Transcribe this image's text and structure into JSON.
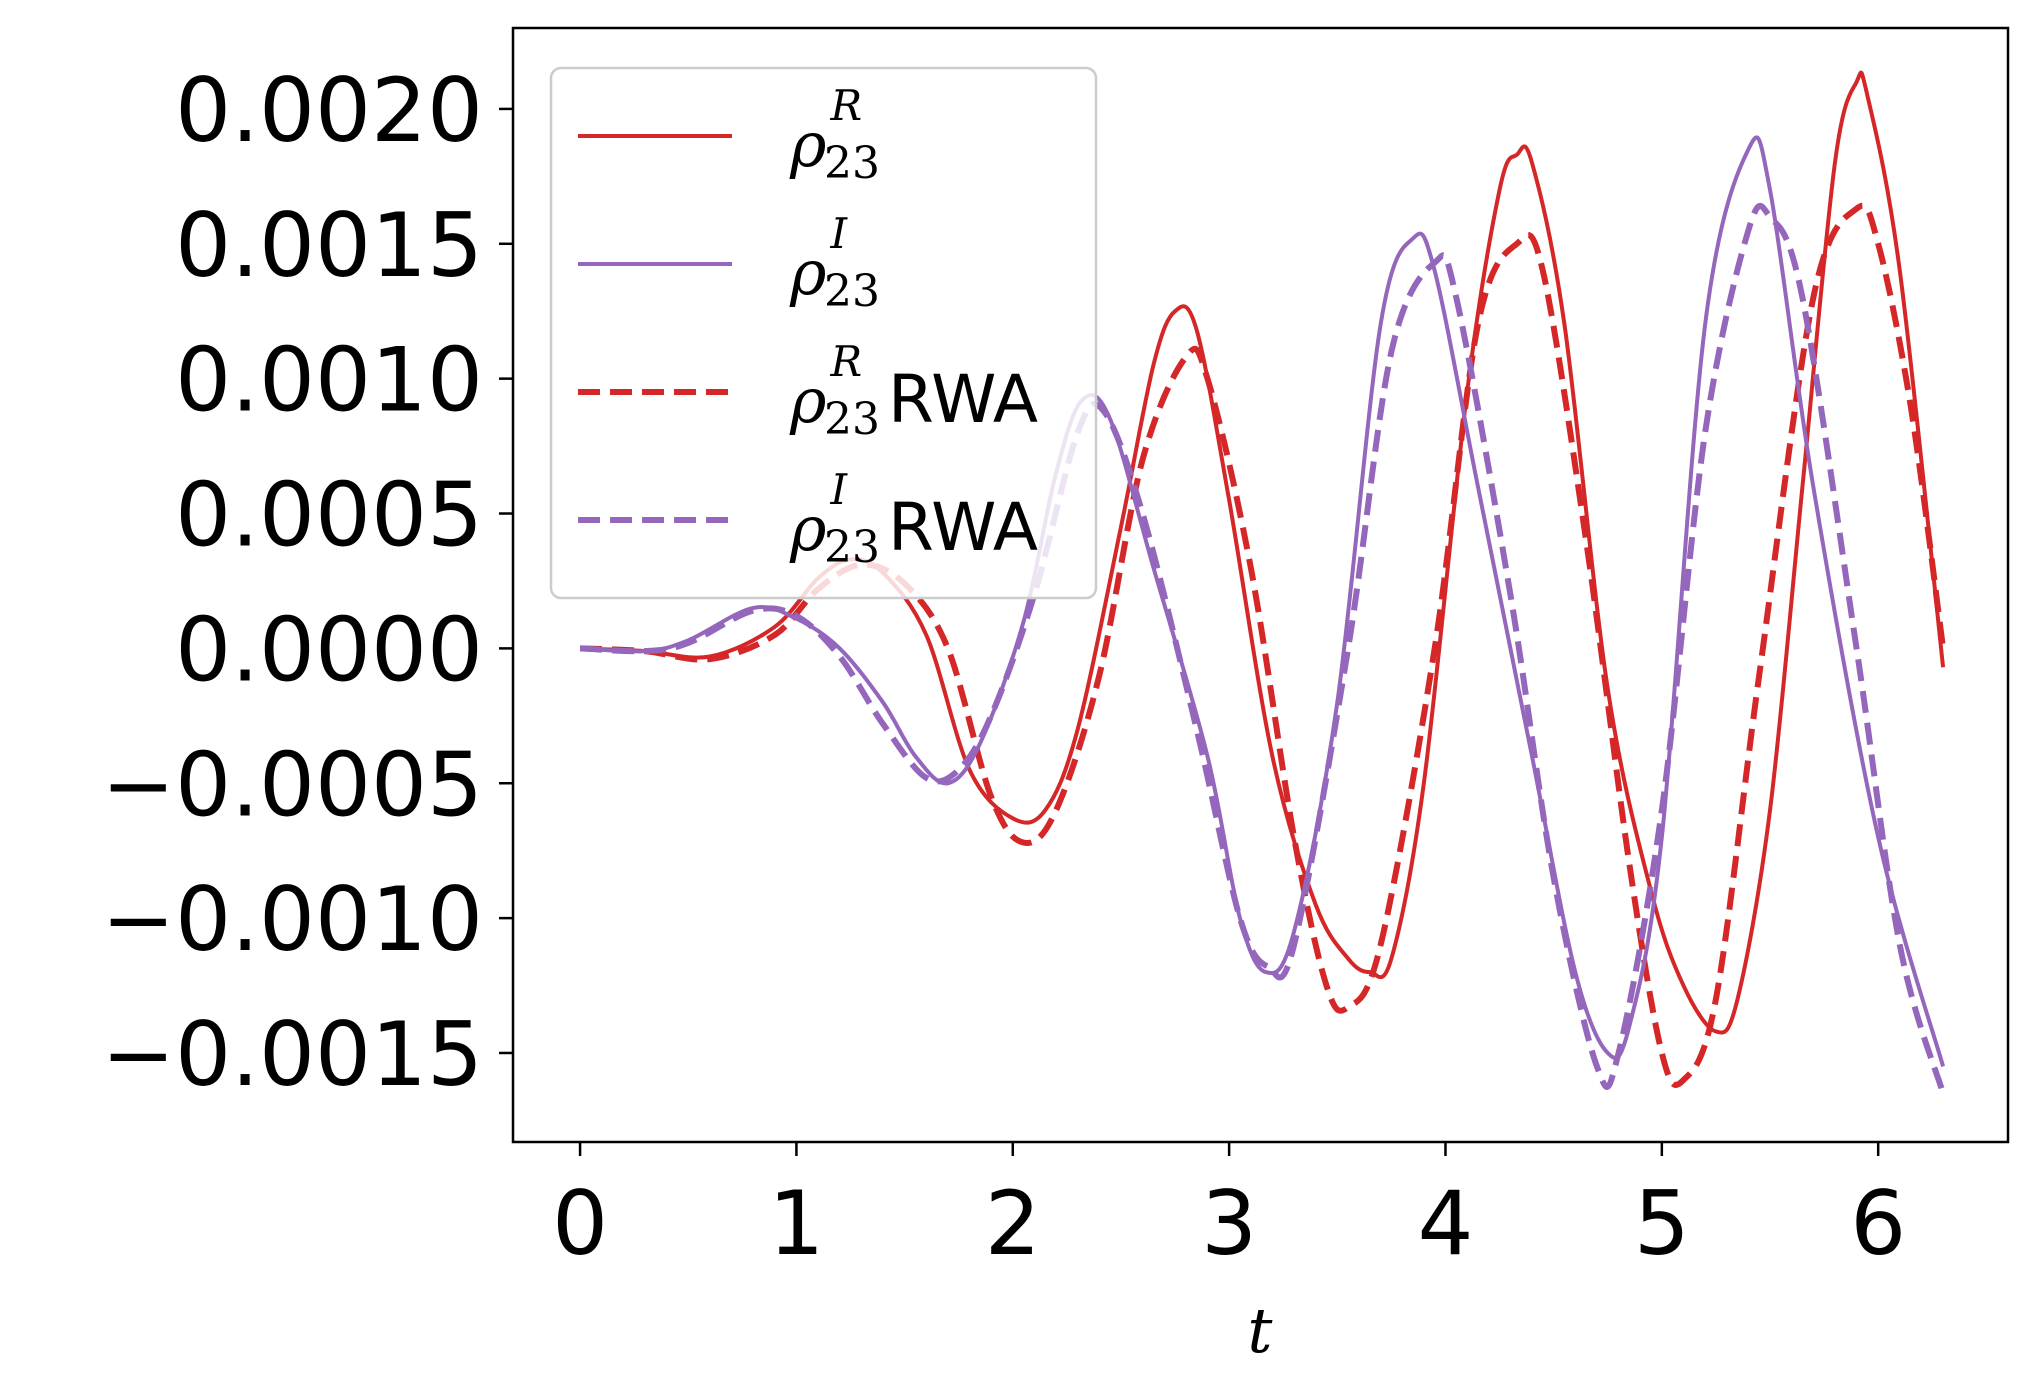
{
  "chart_data": {
    "type": "line",
    "title": "",
    "xlabel": "t",
    "ylabel": "",
    "xlim": [
      -0.31,
      6.6
    ],
    "ylim": [
      -0.00183,
      0.0023
    ],
    "xticks": [
      "0",
      "1",
      "2",
      "3",
      "4",
      "5",
      "6"
    ],
    "yticks": [
      "0.0020",
      "0.0015",
      "0.0010",
      "0.0005",
      "0.0000",
      "−0.0005",
      "−0.0010",
      "−0.0015"
    ],
    "grid": false,
    "legend_position": "upper-left",
    "series": [
      {
        "name": "ρ_23^R",
        "legend": {
          "base": "ρ",
          "sub": "23",
          "sup": "R",
          "suffix": ""
        },
        "color": "#d62728",
        "dash": "solid",
        "points": [
          [
            0,
            0
          ],
          [
            0.3,
            -1e-05
          ],
          [
            0.6,
            -3e-05
          ],
          [
            0.9,
            8e-05
          ],
          [
            1.1,
            0.00026
          ],
          [
            1.25,
            0.00033
          ],
          [
            1.4,
            0.00028
          ],
          [
            1.6,
            5e-05
          ],
          [
            1.8,
            -0.00045
          ],
          [
            2.0,
            -0.00063
          ],
          [
            2.15,
            -0.0006
          ],
          [
            2.3,
            -0.0003
          ],
          [
            2.5,
            0.00045
          ],
          [
            2.65,
            0.00105
          ],
          [
            2.75,
            0.00125
          ],
          [
            2.85,
            0.00118
          ],
          [
            3.0,
            0.00055
          ],
          [
            3.2,
            -0.0004
          ],
          [
            3.4,
            -0.00095
          ],
          [
            3.55,
            -0.00115
          ],
          [
            3.65,
            -0.0012
          ],
          [
            3.75,
            -0.00115
          ],
          [
            3.9,
            -0.0005
          ],
          [
            4.1,
            0.00095
          ],
          [
            4.25,
            0.0017
          ],
          [
            4.33,
            0.00183
          ],
          [
            4.4,
            0.0018
          ],
          [
            4.55,
            0.0012
          ],
          [
            4.75,
            -0.00015
          ],
          [
            4.95,
            -0.0009
          ],
          [
            5.1,
            -0.00125
          ],
          [
            5.25,
            -0.00142
          ],
          [
            5.35,
            -0.0013
          ],
          [
            5.5,
            -0.0006
          ],
          [
            5.65,
            0.0006
          ],
          [
            5.8,
            0.0018
          ],
          [
            5.9,
            0.0021
          ],
          [
            5.95,
            0.00205
          ],
          [
            6.1,
            0.0014
          ],
          [
            6.3,
            -7e-05
          ]
        ]
      },
      {
        "name": "ρ_23^I",
        "legend": {
          "base": "ρ",
          "sub": "23",
          "sup": "I",
          "suffix": ""
        },
        "color": "#9467bd",
        "dash": "solid",
        "points": [
          [
            0,
            0
          ],
          [
            0.3,
            -1e-05
          ],
          [
            0.5,
            3e-05
          ],
          [
            0.8,
            0.00015
          ],
          [
            1.0,
            0.00011
          ],
          [
            1.2,
            0
          ],
          [
            1.4,
            -0.0002
          ],
          [
            1.55,
            -0.0004
          ],
          [
            1.7,
            -0.0005
          ],
          [
            1.85,
            -0.00035
          ],
          [
            2.05,
            0.0001
          ],
          [
            2.2,
            0.00065
          ],
          [
            2.32,
            0.00092
          ],
          [
            2.45,
            0.00085
          ],
          [
            2.65,
            0.0003
          ],
          [
            2.9,
            -0.0004
          ],
          [
            3.05,
            -0.001
          ],
          [
            3.17,
            -0.0012
          ],
          [
            3.3,
            -0.00105
          ],
          [
            3.5,
            -0.0002
          ],
          [
            3.7,
            0.0012
          ],
          [
            3.85,
            0.00152
          ],
          [
            3.95,
            0.0014
          ],
          [
            4.15,
            0.0006
          ],
          [
            4.4,
            -0.0004
          ],
          [
            4.6,
            -0.0012
          ],
          [
            4.75,
            -0.0015
          ],
          [
            4.85,
            -0.0014
          ],
          [
            5.0,
            -0.0007
          ],
          [
            5.2,
            0.0012
          ],
          [
            5.4,
            0.00185
          ],
          [
            5.5,
            0.0017
          ],
          [
            5.7,
            0.0006
          ],
          [
            6.0,
            -0.0007
          ],
          [
            6.3,
            -0.00155
          ]
        ]
      },
      {
        "name": "ρ_23^R RWA",
        "legend": {
          "base": "ρ",
          "sub": "23",
          "sup": "R",
          "suffix": "RWA"
        },
        "color": "#d62728",
        "dash": "dashed",
        "points": [
          [
            0,
            0
          ],
          [
            0.3,
            -1e-05
          ],
          [
            0.6,
            -4e-05
          ],
          [
            0.9,
            5e-05
          ],
          [
            1.1,
            0.00022
          ],
          [
            1.3,
            0.00031
          ],
          [
            1.5,
            0.00024
          ],
          [
            1.7,
            0
          ],
          [
            1.9,
            -0.00055
          ],
          [
            2.05,
            -0.00072
          ],
          [
            2.2,
            -0.0006
          ],
          [
            2.4,
            -0.0001
          ],
          [
            2.6,
            0.0007
          ],
          [
            2.8,
            0.00108
          ],
          [
            2.9,
            0.001
          ],
          [
            3.1,
            0.0003
          ],
          [
            3.3,
            -0.0007
          ],
          [
            3.45,
            -0.00125
          ],
          [
            3.55,
            -0.00133
          ],
          [
            3.7,
            -0.0011
          ],
          [
            3.95,
            0
          ],
          [
            4.15,
            0.0012
          ],
          [
            4.33,
            0.0015
          ],
          [
            4.45,
            0.0014
          ],
          [
            4.65,
            0.0004
          ],
          [
            4.85,
            -0.0008
          ],
          [
            5.0,
            -0.0015
          ],
          [
            5.1,
            -0.0016
          ],
          [
            5.25,
            -0.0013
          ],
          [
            5.45,
            -0.0001
          ],
          [
            5.7,
            0.0013
          ],
          [
            5.9,
            0.00163
          ],
          [
            6.0,
            0.0015
          ],
          [
            6.15,
            0.0009
          ],
          [
            6.3,
            0
          ]
        ]
      },
      {
        "name": "ρ_23^I RWA",
        "legend": {
          "base": "ρ",
          "sub": "23",
          "sup": "I",
          "suffix": "RWA"
        },
        "color": "#9467bd",
        "dash": "dashed",
        "points": [
          [
            0,
            0
          ],
          [
            0.3,
            -1e-05
          ],
          [
            0.5,
            2e-05
          ],
          [
            0.8,
            0.00014
          ],
          [
            1.0,
            0.00012
          ],
          [
            1.2,
            -3e-05
          ],
          [
            1.4,
            -0.00028
          ],
          [
            1.6,
            -0.00048
          ],
          [
            1.75,
            -0.00045
          ],
          [
            1.9,
            -0.00025
          ],
          [
            2.1,
            0.0002
          ],
          [
            2.3,
            0.0008
          ],
          [
            2.42,
            0.00088
          ],
          [
            2.6,
            0.0005
          ],
          [
            2.85,
            -0.0003
          ],
          [
            3.05,
            -0.001
          ],
          [
            3.18,
            -0.00118
          ],
          [
            3.3,
            -0.0011
          ],
          [
            3.55,
            0
          ],
          [
            3.75,
            0.0011
          ],
          [
            3.95,
            0.00143
          ],
          [
            4.05,
            0.0013
          ],
          [
            4.3,
            0.0002
          ],
          [
            4.5,
            -0.00085
          ],
          [
            4.7,
            -0.00155
          ],
          [
            4.8,
            -0.0015
          ],
          [
            5.0,
            -0.0006
          ],
          [
            5.2,
            0.0008
          ],
          [
            5.4,
            0.00155
          ],
          [
            5.5,
            0.0016
          ],
          [
            5.65,
            0.0013
          ],
          [
            5.9,
            0
          ],
          [
            6.1,
            -0.0011
          ],
          [
            6.3,
            -0.00165
          ]
        ]
      }
    ]
  }
}
